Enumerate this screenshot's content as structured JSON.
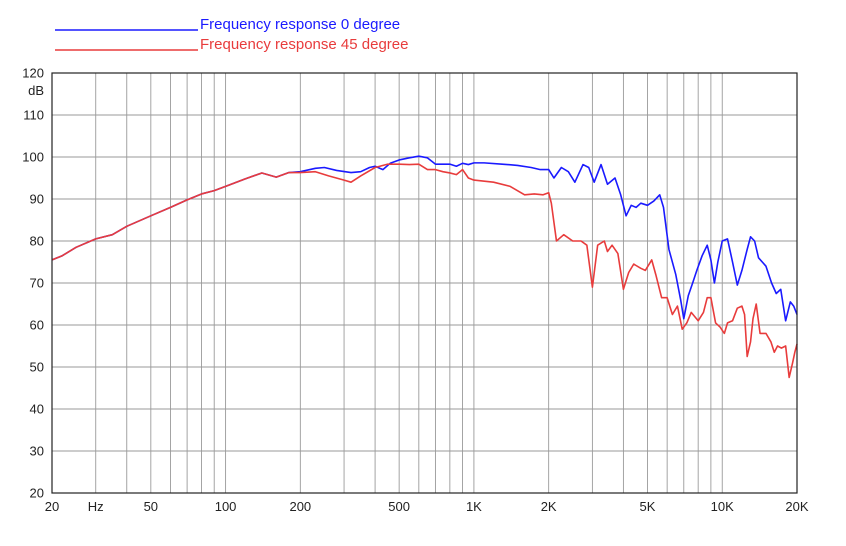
{
  "chart_data": {
    "type": "line",
    "title": "",
    "xlabel": "",
    "ylabel": "dB",
    "x_scale": "log",
    "xlim": [
      20,
      20000
    ],
    "ylim": [
      20,
      120
    ],
    "grid": true,
    "legend_position": "top-left",
    "x_tick_labels": [
      {
        "value": 20,
        "label": "20"
      },
      {
        "value": 30,
        "label": "Hz"
      },
      {
        "value": 50,
        "label": "50"
      },
      {
        "value": 100,
        "label": "100"
      },
      {
        "value": 200,
        "label": "200"
      },
      {
        "value": 500,
        "label": "500"
      },
      {
        "value": 1000,
        "label": "1K"
      },
      {
        "value": 2000,
        "label": "2K"
      },
      {
        "value": 5000,
        "label": "5K"
      },
      {
        "value": 10000,
        "label": "10K"
      },
      {
        "value": 20000,
        "label": "20K"
      }
    ],
    "x_grid_values": [
      20,
      30,
      40,
      50,
      60,
      70,
      80,
      90,
      100,
      200,
      300,
      400,
      500,
      600,
      700,
      800,
      900,
      1000,
      2000,
      3000,
      4000,
      5000,
      6000,
      7000,
      8000,
      9000,
      10000,
      20000
    ],
    "y_ticks": [
      20,
      30,
      40,
      50,
      60,
      70,
      80,
      90,
      100,
      110,
      120
    ],
    "series": [
      {
        "name": "Frequency response 0 degree",
        "color": "#1a1aff",
        "points": [
          [
            20,
            75.5
          ],
          [
            22,
            76.5
          ],
          [
            25,
            78.5
          ],
          [
            30,
            80.5
          ],
          [
            35,
            81.5
          ],
          [
            40,
            83.5
          ],
          [
            50,
            86
          ],
          [
            60,
            88
          ],
          [
            70,
            89.8
          ],
          [
            80,
            91.2
          ],
          [
            90,
            92
          ],
          [
            100,
            93
          ],
          [
            120,
            94.8
          ],
          [
            140,
            96.2
          ],
          [
            160,
            95.2
          ],
          [
            180,
            96.3
          ],
          [
            200,
            96.5
          ],
          [
            230,
            97.3
          ],
          [
            250,
            97.5
          ],
          [
            280,
            96.8
          ],
          [
            320,
            96.3
          ],
          [
            350,
            96.5
          ],
          [
            380,
            97.5
          ],
          [
            400,
            97.8
          ],
          [
            430,
            97
          ],
          [
            460,
            98.5
          ],
          [
            500,
            99.3
          ],
          [
            550,
            99.8
          ],
          [
            600,
            100.2
          ],
          [
            650,
            99.8
          ],
          [
            700,
            98.3
          ],
          [
            800,
            98.3
          ],
          [
            850,
            97.8
          ],
          [
            900,
            98.5
          ],
          [
            950,
            98.2
          ],
          [
            1000,
            98.6
          ],
          [
            1100,
            98.6
          ],
          [
            1300,
            98.3
          ],
          [
            1500,
            98
          ],
          [
            1700,
            97.5
          ],
          [
            1850,
            97
          ],
          [
            2000,
            97
          ],
          [
            2100,
            95
          ],
          [
            2250,
            97.5
          ],
          [
            2400,
            96.5
          ],
          [
            2550,
            94
          ],
          [
            2750,
            98.2
          ],
          [
            2900,
            97.5
          ],
          [
            3050,
            94
          ],
          [
            3250,
            98.2
          ],
          [
            3450,
            93.5
          ],
          [
            3700,
            95
          ],
          [
            3900,
            91
          ],
          [
            4100,
            86
          ],
          [
            4300,
            88.5
          ],
          [
            4500,
            88
          ],
          [
            4700,
            89
          ],
          [
            5000,
            88.5
          ],
          [
            5300,
            89.5
          ],
          [
            5600,
            91
          ],
          [
            5800,
            88
          ],
          [
            6100,
            78
          ],
          [
            6500,
            72
          ],
          [
            6800,
            66
          ],
          [
            7000,
            61.5
          ],
          [
            7300,
            67
          ],
          [
            7600,
            70
          ],
          [
            7900,
            73
          ],
          [
            8300,
            76.5
          ],
          [
            8700,
            79
          ],
          [
            9000,
            75.5
          ],
          [
            9300,
            70
          ],
          [
            9600,
            75
          ],
          [
            10000,
            80
          ],
          [
            10500,
            80.5
          ],
          [
            11000,
            75
          ],
          [
            11500,
            69.5
          ],
          [
            12000,
            73
          ],
          [
            12600,
            78
          ],
          [
            13000,
            81
          ],
          [
            13500,
            80
          ],
          [
            14000,
            76
          ],
          [
            15000,
            74
          ],
          [
            15800,
            70
          ],
          [
            16500,
            67.5
          ],
          [
            17200,
            68.5
          ],
          [
            18000,
            61
          ],
          [
            18800,
            65.5
          ],
          [
            19400,
            64.5
          ],
          [
            20000,
            62.5
          ]
        ]
      },
      {
        "name": "Frequency response 45 degree",
        "color": "#e83c3c",
        "points": [
          [
            20,
            75.5
          ],
          [
            22,
            76.5
          ],
          [
            25,
            78.5
          ],
          [
            30,
            80.5
          ],
          [
            35,
            81.5
          ],
          [
            40,
            83.5
          ],
          [
            50,
            86
          ],
          [
            60,
            88
          ],
          [
            70,
            89.8
          ],
          [
            80,
            91.2
          ],
          [
            90,
            92
          ],
          [
            100,
            93
          ],
          [
            120,
            94.8
          ],
          [
            140,
            96.2
          ],
          [
            160,
            95.2
          ],
          [
            180,
            96.3
          ],
          [
            200,
            96.3
          ],
          [
            230,
            96.5
          ],
          [
            260,
            95.5
          ],
          [
            300,
            94.5
          ],
          [
            320,
            94
          ],
          [
            350,
            95.5
          ],
          [
            400,
            97.5
          ],
          [
            450,
            98.3
          ],
          [
            500,
            98.3
          ],
          [
            550,
            98.2
          ],
          [
            600,
            98.3
          ],
          [
            650,
            97
          ],
          [
            700,
            97
          ],
          [
            750,
            96.5
          ],
          [
            800,
            96.2
          ],
          [
            850,
            95.8
          ],
          [
            900,
            97
          ],
          [
            950,
            95
          ],
          [
            1000,
            94.5
          ],
          [
            1200,
            94
          ],
          [
            1400,
            93
          ],
          [
            1600,
            91
          ],
          [
            1750,
            91.2
          ],
          [
            1900,
            91
          ],
          [
            2000,
            91.5
          ],
          [
            2050,
            89
          ],
          [
            2150,
            80
          ],
          [
            2300,
            81.5
          ],
          [
            2500,
            80
          ],
          [
            2700,
            80
          ],
          [
            2850,
            79
          ],
          [
            3000,
            69
          ],
          [
            3150,
            79
          ],
          [
            3350,
            80
          ],
          [
            3450,
            77.5
          ],
          [
            3600,
            79
          ],
          [
            3800,
            77
          ],
          [
            4000,
            68.5
          ],
          [
            4200,
            72.5
          ],
          [
            4400,
            74.5
          ],
          [
            4700,
            73.5
          ],
          [
            4900,
            73
          ],
          [
            5200,
            75.5
          ],
          [
            5400,
            72
          ],
          [
            5700,
            66.5
          ],
          [
            6000,
            66.5
          ],
          [
            6300,
            62.5
          ],
          [
            6600,
            64.5
          ],
          [
            6900,
            59
          ],
          [
            7200,
            60.5
          ],
          [
            7500,
            63
          ],
          [
            8000,
            61
          ],
          [
            8400,
            63
          ],
          [
            8700,
            66.5
          ],
          [
            9000,
            66.5
          ],
          [
            9400,
            60.5
          ],
          [
            9800,
            59.5
          ],
          [
            10200,
            58
          ],
          [
            10500,
            60.5
          ],
          [
            11000,
            61
          ],
          [
            11500,
            64
          ],
          [
            12000,
            64.5
          ],
          [
            12300,
            62.5
          ],
          [
            12600,
            52.5
          ],
          [
            13000,
            56
          ],
          [
            13300,
            61.5
          ],
          [
            13700,
            65
          ],
          [
            14200,
            58
          ],
          [
            15000,
            58
          ],
          [
            15700,
            56
          ],
          [
            16200,
            53.5
          ],
          [
            16700,
            55
          ],
          [
            17300,
            54.5
          ],
          [
            18000,
            55
          ],
          [
            18600,
            47.5
          ],
          [
            19200,
            51
          ],
          [
            19600,
            53.5
          ],
          [
            20000,
            55.5
          ]
        ]
      }
    ]
  }
}
